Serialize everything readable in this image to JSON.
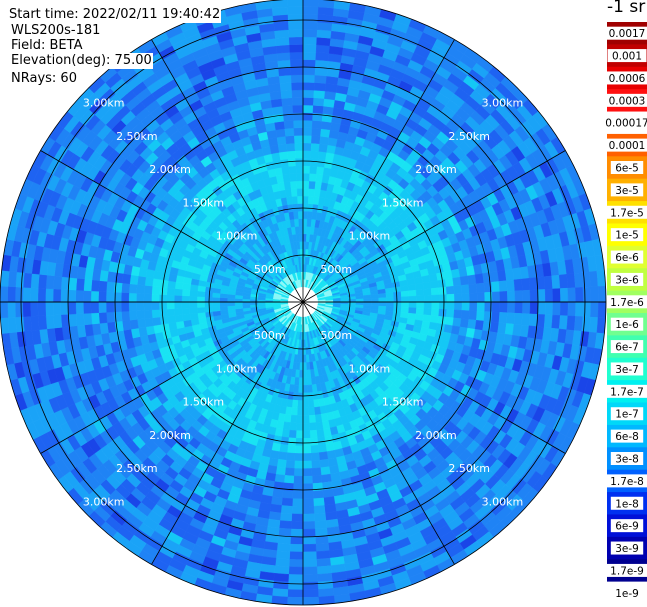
{
  "header": {
    "start_time": "Start time: 2022/02/11 19:40:42",
    "site": "WLS200s-181",
    "field": "Field: BETA",
    "elevation": "Elevation(deg): 75.00",
    "nrays": "NRays: 60"
  },
  "colorbar": {
    "unit": "-1 sr",
    "labels": [
      "0.0017",
      "0.001",
      "0.0006",
      "0.0003",
      "0.00017",
      "0.0001",
      "6e-5",
      "3e-5",
      "1.7e-5",
      "1e-5",
      "6e-6",
      "3e-6",
      "1.7e-6",
      "1e-6",
      "6e-7",
      "3e-7",
      "1.7e-7",
      "1e-7",
      "6e-8",
      "3e-8",
      "1.7e-8",
      "1e-8",
      "6e-9",
      "3e-9",
      "1.7e-9",
      "1e-9"
    ],
    "colors": [
      "#a00000",
      "#c00000",
      "#e80000",
      "#ff1010",
      "#ffffff",
      "#ff6000",
      "#ff8c00",
      "#ffb000",
      "#ffe000",
      "#ffff00",
      "#e0ff30",
      "#c0ff40",
      "#a0ff60",
      "#70ff90",
      "#40ffb0",
      "#20ffd0",
      "#00f0f0",
      "#00d8f8",
      "#00b8ff",
      "#0090ff",
      "#0060ff",
      "#0030f0",
      "#0010d8",
      "#0000b0",
      "#000090",
      "#ffffff"
    ]
  },
  "rings": {
    "labels": [
      "500m",
      "1.00km",
      "1.50km",
      "2.00km",
      "2.50km",
      "3.00km"
    ]
  },
  "palette": {
    "white": "#ffffff",
    "light_cyan": "#8af7f7",
    "cyan": "#19e3f3",
    "aqua": "#14c8f5",
    "sky": "#1aa3f7",
    "azure": "#1f83f5",
    "blue": "#1e63f2",
    "deep_blue": "#1a45e8",
    "navy": "#1428d4"
  }
}
